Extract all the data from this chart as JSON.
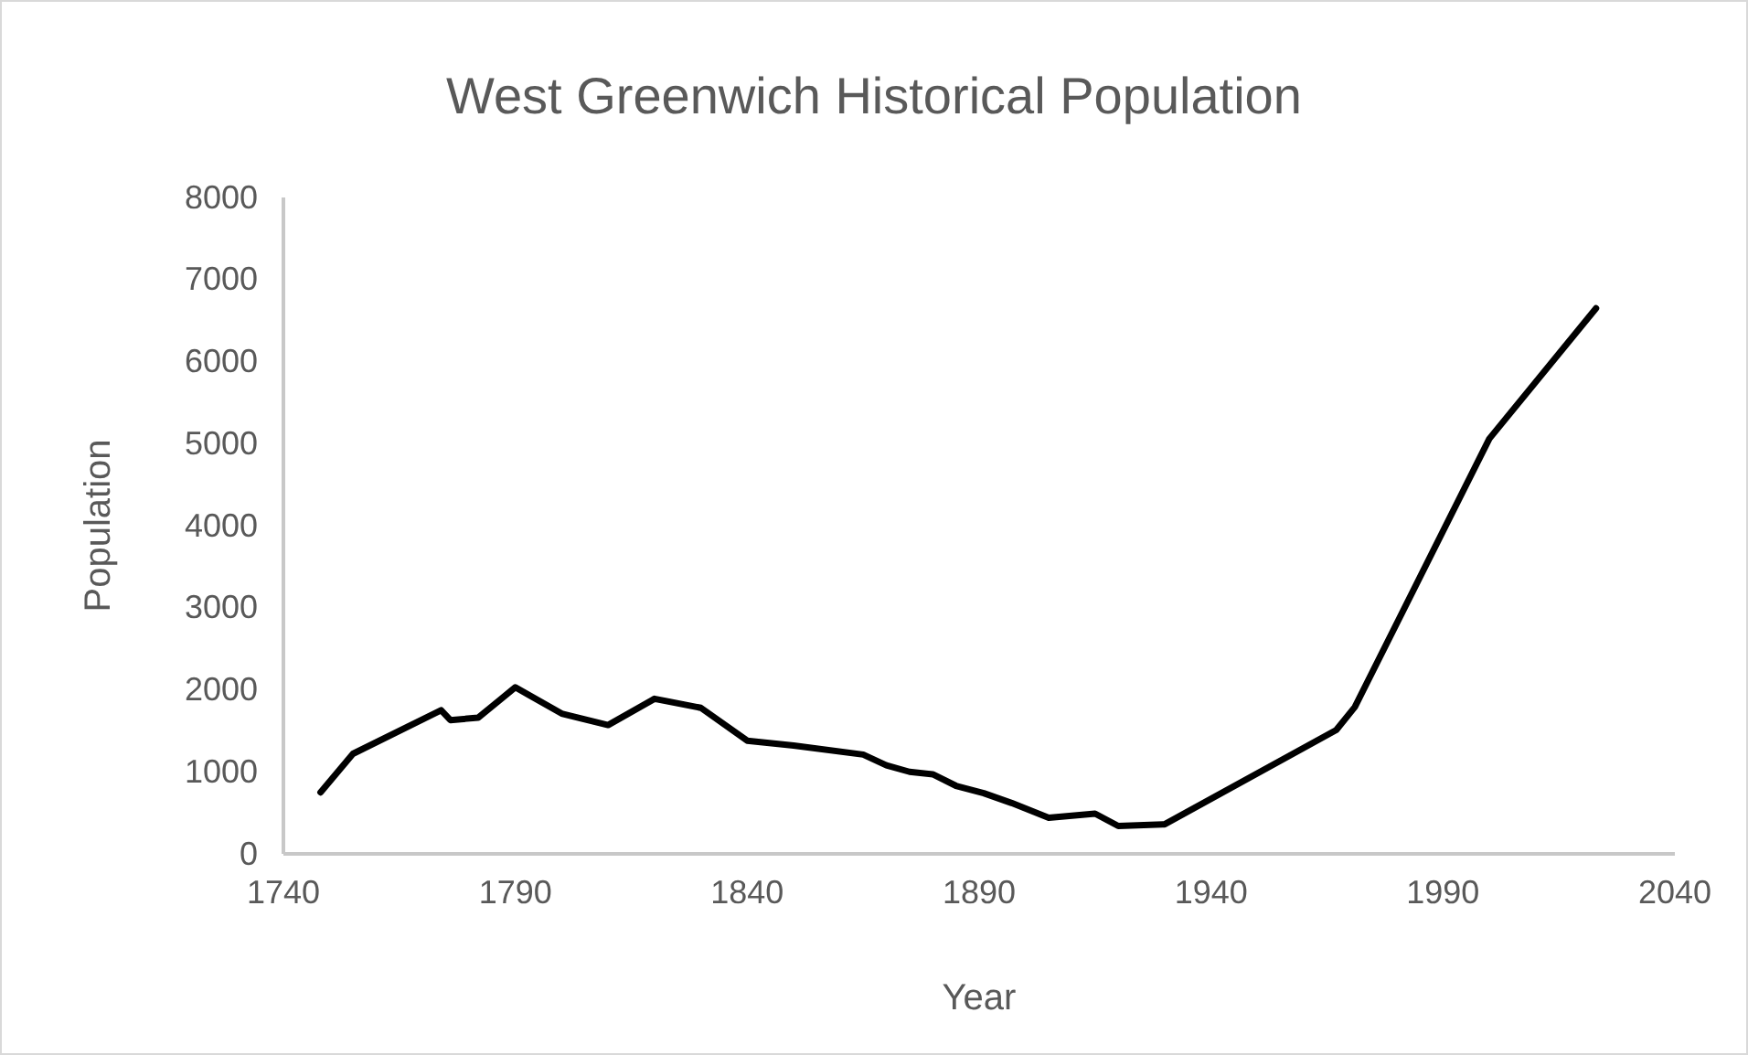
{
  "chart_data": {
    "type": "line",
    "title": "West Greenwich Historical Population",
    "xlabel": "Year",
    "ylabel": "Population",
    "x": [
      1748,
      1755,
      1774,
      1776,
      1782,
      1790,
      1800,
      1810,
      1820,
      1830,
      1840,
      1850,
      1865,
      1870,
      1875,
      1880,
      1885,
      1891,
      1897,
      1905,
      1915,
      1920,
      1930,
      1967,
      1971,
      2000,
      2023
    ],
    "series": [
      {
        "color": "#000000",
        "values": [
          750,
          1220,
          1750,
          1630,
          1660,
          2030,
          1710,
          1570,
          1890,
          1780,
          1380,
          1320,
          1210,
          1080,
          1000,
          970,
          830,
          740,
          620,
          440,
          490,
          340,
          360,
          1510,
          1790,
          5060,
          6650
        ]
      }
    ],
    "xlim": [
      1740,
      2040
    ],
    "xticks": [
      1740,
      1790,
      1840,
      1890,
      1940,
      1990,
      2040
    ],
    "ylim": [
      0,
      8000
    ],
    "yticks": [
      0,
      1000,
      2000,
      3000,
      4000,
      5000,
      6000,
      7000,
      8000
    ],
    "grid": false,
    "marker": "none",
    "line_style": "solid"
  }
}
